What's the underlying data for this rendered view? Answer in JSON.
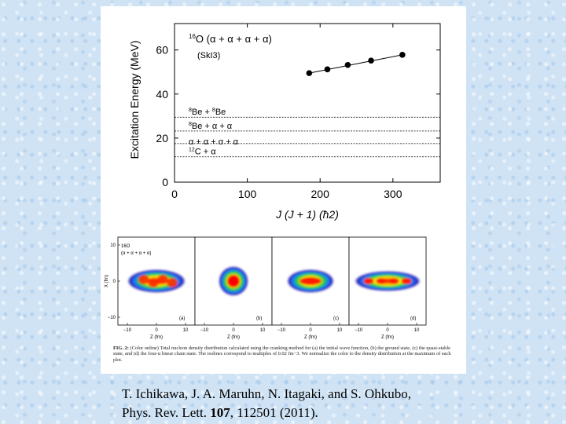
{
  "chart_data": {
    "type": "scatter",
    "title": "16O (α + α + α + α)",
    "title_parts": {
      "mass": "16",
      "main": "O (α + α + α + α)"
    },
    "subtitle": "(SkI3)",
    "xlabel": "J (J + 1) (ħ2)",
    "ylabel": "Excitation Energy (MeV)",
    "xlim": [
      0,
      365
    ],
    "ylim": [
      0,
      72
    ],
    "xticks": [
      0,
      100,
      200,
      300
    ],
    "yticks": [
      0,
      20,
      40,
      60
    ],
    "grid": false,
    "series": [
      {
        "points": [
          {
            "x": 185,
            "y": 49.5
          },
          {
            "x": 210,
            "y": 51.2
          },
          {
            "x": 238,
            "y": 53.2
          },
          {
            "x": 270,
            "y": 55.2
          },
          {
            "x": 313,
            "y": 57.8
          }
        ]
      }
    ],
    "trend_line": {
      "x": [
        185,
        313
      ],
      "y": [
        49.5,
        57.8
      ]
    },
    "thresholds": [
      {
        "y": 29.5,
        "parts": [
          "8",
          "Be + ",
          "8",
          "Be"
        ]
      },
      {
        "y": 23.2,
        "parts": [
          "8",
          "Be + α + α"
        ]
      },
      {
        "y": 17.5,
        "parts": [
          "",
          "α + α + α + α"
        ]
      },
      {
        "y": 11.5,
        "parts": [
          "12",
          "C + α"
        ]
      }
    ]
  },
  "panels": {
    "x_axis_label": "Z (fm)",
    "y_axis_label": "X (fm)",
    "x_ticks": [
      "−10",
      "0",
      "10"
    ],
    "y_ticks": [
      "10",
      "0",
      "−10"
    ],
    "first_panel_title": "16O",
    "first_panel_subtitle": "(α + α + α + α)",
    "items": [
      {
        "letter": "(a)",
        "shape": "four-alpha-initial"
      },
      {
        "letter": "(b)",
        "shape": "ground-state"
      },
      {
        "letter": "(c)",
        "shape": "quasi-stable"
      },
      {
        "letter": "(d)",
        "shape": "linear-chain"
      }
    ]
  },
  "caption": {
    "label": "FIG. 2:",
    "text": "(Color online) Total nucleon density distribution calculated using the cranking method for (a) the initial wave function, (b) the ground state, (c) the quasi-stable state, and (d) the four-α linear chain state. The isolines correspond to multiples of 0.02 fm−3. We normalize the color to the density distribution at the maximum of each plot."
  },
  "citation": {
    "line1": "T. Ichikawa, J. A. Maruhn, N. Itagaki, and S. Ohkubo,",
    "line2_prefix": "Phys. Rev. Lett. ",
    "line2_volume": "107",
    "line2_suffix": ", 112501 (2011)."
  }
}
